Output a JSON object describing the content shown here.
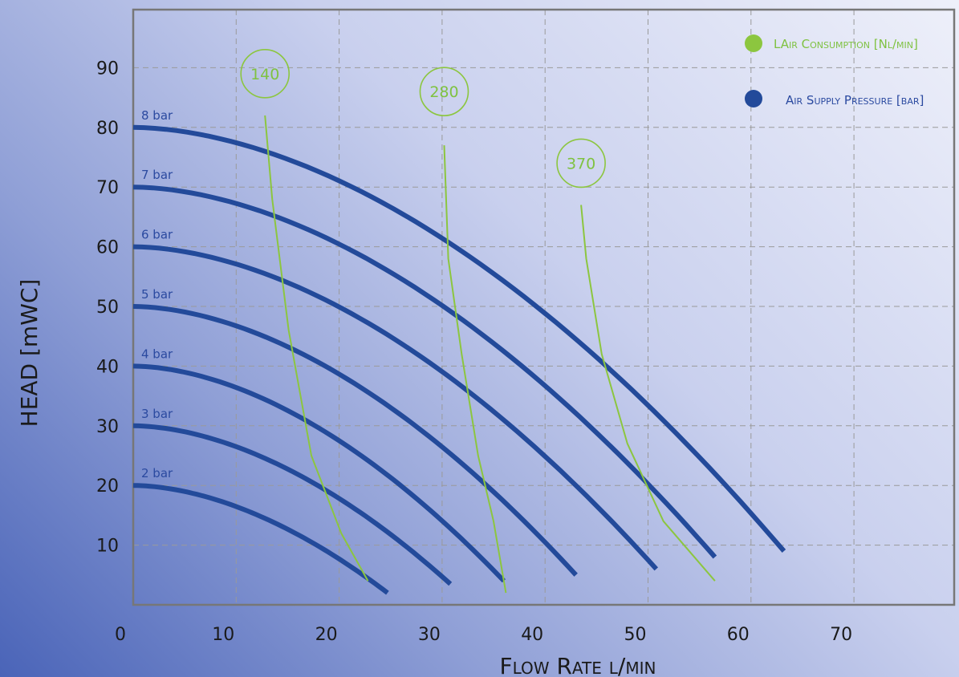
{
  "colors": {
    "pressure_line": "#234a9a",
    "consumption_line": "#8cc63f",
    "grid": "#9a9a9a",
    "frame": "#777777",
    "legend_green_text": "#7fc241",
    "legend_blue_text": "#2b4aa0"
  },
  "chart_data": {
    "type": "line",
    "xlabel": "Flow Rate l/min",
    "ylabel": "HEAD [mWC]",
    "xlim": [
      0,
      80
    ],
    "ylim": [
      0,
      100
    ],
    "x_ticks": [
      "0",
      "10",
      "20",
      "30",
      "40",
      "50",
      "60",
      "70"
    ],
    "y_ticks": [
      "10",
      "20",
      "30",
      "40",
      "50",
      "60",
      "70",
      "80",
      "90"
    ],
    "legend": [
      {
        "label": "LAir Consumption [Nl/min]",
        "marker": "green-dot"
      },
      {
        "label": "Air Supply Pressure [bar]",
        "marker": "blue-dot"
      }
    ],
    "pressure_series": [
      {
        "name": "8 bar",
        "label": "8 bar",
        "y0": 80,
        "x_end": 63.2,
        "y_end": 9
      },
      {
        "name": "7 bar",
        "label": "7 bar",
        "y0": 70,
        "x_end": 56.5,
        "y_end": 8
      },
      {
        "name": "6 bar",
        "label": "6 bar",
        "y0": 60,
        "x_end": 50.8,
        "y_end": 6
      },
      {
        "name": "5 bar",
        "label": "5 bar",
        "y0": 50,
        "x_end": 43.0,
        "y_end": 5
      },
      {
        "name": "4 bar",
        "label": "4 bar",
        "y0": 40,
        "x_end": 36.0,
        "y_end": 4
      },
      {
        "name": "3 bar",
        "label": "3 bar",
        "y0": 30,
        "x_end": 30.8,
        "y_end": 3.5
      },
      {
        "name": "2 bar",
        "label": "2 bar",
        "y0": 20,
        "x_end": 24.7,
        "y_end": 2
      }
    ],
    "consumption_series": [
      {
        "name": "140",
        "label": "140",
        "bubble": [
          12.8,
          89
        ],
        "points": [
          [
            12.8,
            82
          ],
          [
            13.5,
            68
          ],
          [
            15.1,
            46
          ],
          [
            17.3,
            25
          ],
          [
            20.2,
            12
          ],
          [
            22.8,
            4
          ]
        ]
      },
      {
        "name": "280",
        "label": "280",
        "bubble": [
          30.2,
          86
        ],
        "points": [
          [
            30.2,
            77
          ],
          [
            30.6,
            58
          ],
          [
            31.9,
            42
          ],
          [
            33.5,
            25
          ],
          [
            35.0,
            14
          ],
          [
            36.2,
            2
          ]
        ]
      },
      {
        "name": "370",
        "label": "370",
        "bubble": [
          43.5,
          74
        ],
        "points": [
          [
            43.5,
            67
          ],
          [
            44.0,
            58
          ],
          [
            45.5,
            42
          ],
          [
            48.0,
            27
          ],
          [
            51.5,
            14
          ],
          [
            56.5,
            4
          ]
        ]
      }
    ]
  }
}
